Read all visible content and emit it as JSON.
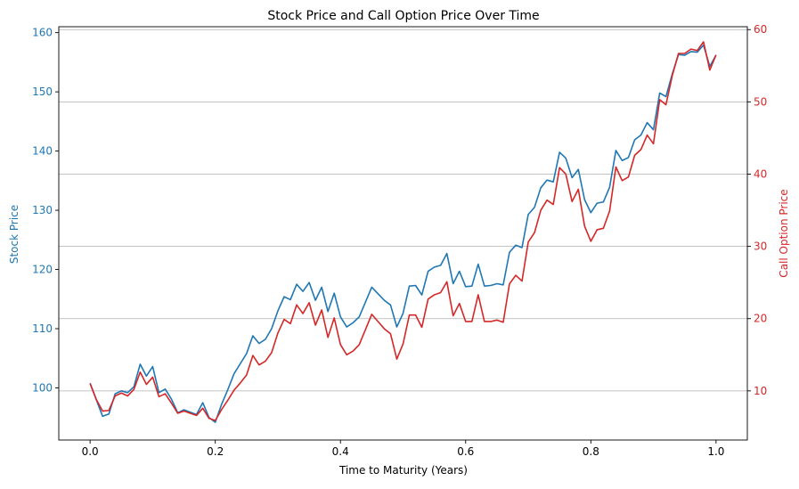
{
  "chart_data": {
    "type": "line",
    "title": "Stock Price and Call Option Price Over Time",
    "xlabel": "Time to Maturity (Years)",
    "ylabel_left": "Stock Price",
    "ylabel_right": "Call Option Price",
    "xlim": [
      -0.05,
      1.05
    ],
    "ylim_left": [
      91.2,
      161.0
    ],
    "ylim_right": [
      3.2,
      60.4
    ],
    "x_ticks": [
      0.0,
      0.2,
      0.4,
      0.6,
      0.8,
      1.0
    ],
    "x_tick_labels": [
      "0.0",
      "0.2",
      "0.4",
      "0.6",
      "0.8",
      "1.0"
    ],
    "y_left_ticks": [
      100,
      110,
      120,
      130,
      140,
      150,
      160
    ],
    "y_left_tick_labels": [
      "100",
      "110",
      "120",
      "130",
      "140",
      "150",
      "160"
    ],
    "y_right_ticks": [
      10,
      20,
      30,
      40,
      50,
      60
    ],
    "y_right_tick_labels": [
      "10",
      "20",
      "30",
      "40",
      "50",
      "60"
    ],
    "grid": "horizontal lines at right-axis ticks",
    "colors": {
      "stock": "#1f77b4",
      "option": "#d62728",
      "grid": "#b0b0b0",
      "axis": "#000000"
    },
    "x": [
      0.0,
      0.01,
      0.02,
      0.03,
      0.04,
      0.05,
      0.06,
      0.07,
      0.08,
      0.09,
      0.1,
      0.11,
      0.12,
      0.13,
      0.14,
      0.15,
      0.16,
      0.17,
      0.18,
      0.19,
      0.2,
      0.21,
      0.22,
      0.23,
      0.24,
      0.25,
      0.26,
      0.27,
      0.28,
      0.29,
      0.3,
      0.31,
      0.32,
      0.33,
      0.34,
      0.35,
      0.36,
      0.37,
      0.38,
      0.39,
      0.4,
      0.41,
      0.42,
      0.43,
      0.44,
      0.45,
      0.46,
      0.47,
      0.48,
      0.49,
      0.5,
      0.51,
      0.52,
      0.53,
      0.54,
      0.55,
      0.56,
      0.57,
      0.58,
      0.59,
      0.6,
      0.61,
      0.62,
      0.63,
      0.64,
      0.65,
      0.66,
      0.67,
      0.68,
      0.69,
      0.7,
      0.71,
      0.72,
      0.73,
      0.74,
      0.75,
      0.76,
      0.77,
      0.78,
      0.79,
      0.8,
      0.81,
      0.82,
      0.83,
      0.84,
      0.85,
      0.86,
      0.87,
      0.88,
      0.89,
      0.9,
      0.91,
      0.92,
      0.93,
      0.94,
      0.95,
      0.96,
      0.97,
      0.98,
      0.99,
      1.0
    ],
    "series": [
      {
        "name": "Stock Price",
        "axis": "left",
        "color": "#1f77b4",
        "values": [
          100.8,
          98.0,
          95.2,
          95.6,
          99.0,
          99.5,
          99.2,
          100.2,
          104.0,
          102.0,
          103.6,
          99.2,
          99.8,
          98.1,
          95.8,
          96.3,
          95.9,
          95.5,
          97.5,
          95.0,
          94.2,
          97.2,
          99.7,
          102.4,
          104.1,
          105.8,
          108.8,
          107.5,
          108.2,
          110.0,
          113.0,
          115.4,
          114.9,
          117.5,
          116.3,
          117.8,
          114.8,
          117.0,
          112.9,
          116.0,
          112.0,
          110.3,
          111.0,
          112.0,
          114.5,
          117.0,
          115.9,
          114.8,
          114.0,
          110.3,
          112.6,
          117.2,
          117.3,
          115.7,
          119.7,
          120.4,
          120.7,
          122.7,
          117.6,
          119.7,
          117.1,
          117.2,
          120.9,
          117.2,
          117.3,
          117.6,
          117.4,
          122.9,
          124.1,
          123.7,
          129.3,
          130.5,
          133.8,
          135.1,
          134.8,
          139.8,
          138.8,
          135.5,
          136.9,
          131.8,
          129.6,
          131.2,
          131.4,
          133.9,
          140.1,
          138.4,
          138.9,
          141.9,
          142.7,
          144.8,
          143.6,
          149.8,
          149.2,
          153.0,
          156.3,
          156.2,
          156.8,
          156.7,
          157.9,
          154.3,
          156.2
        ]
      },
      {
        "name": "Call Option Price",
        "axis": "right",
        "color": "#d62728",
        "values": [
          11.0,
          8.8,
          7.2,
          7.3,
          9.3,
          9.7,
          9.3,
          10.2,
          12.6,
          10.9,
          11.9,
          9.2,
          9.6,
          8.3,
          6.9,
          7.2,
          6.9,
          6.6,
          7.6,
          6.2,
          5.9,
          7.4,
          8.7,
          10.1,
          11.1,
          12.2,
          14.9,
          13.6,
          14.1,
          15.3,
          18.0,
          19.9,
          19.3,
          21.9,
          20.7,
          22.2,
          19.1,
          21.2,
          17.4,
          20.1,
          16.4,
          15.0,
          15.5,
          16.4,
          18.5,
          20.6,
          19.6,
          18.6,
          17.9,
          14.4,
          16.5,
          20.5,
          20.5,
          18.8,
          22.7,
          23.3,
          23.6,
          25.1,
          20.4,
          22.1,
          19.6,
          19.6,
          23.3,
          19.6,
          19.6,
          19.8,
          19.5,
          24.8,
          26.0,
          25.2,
          30.6,
          31.9,
          35.0,
          36.4,
          35.8,
          40.9,
          40.0,
          36.2,
          37.9,
          32.8,
          30.7,
          32.3,
          32.5,
          34.9,
          41.0,
          39.1,
          39.6,
          42.6,
          43.4,
          45.4,
          44.2,
          50.3,
          49.6,
          53.6,
          56.7,
          56.7,
          57.3,
          57.1,
          58.3,
          54.4,
          56.5
        ]
      }
    ]
  }
}
